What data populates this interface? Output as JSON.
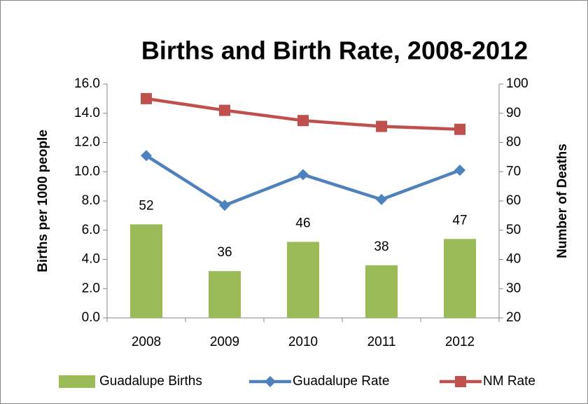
{
  "chart_data": {
    "type": "bar_line",
    "title": "Births and Birth Rate, 2008-2012",
    "ylabel": "Births per 1000 people",
    "y2label": "Number of Deaths",
    "categories": [
      "2008",
      "2009",
      "2010",
      "2011",
      "2012"
    ],
    "series": [
      {
        "name": "Guadalupe Births",
        "type": "bar",
        "axis": "y2",
        "color": "#9bbb59",
        "values": [
          52,
          36,
          46,
          38,
          47
        ]
      },
      {
        "name": "Guadalupe Rate",
        "type": "line",
        "marker": "diamond",
        "color": "#4f81bd",
        "values": [
          11.1,
          7.7,
          9.8,
          8.1,
          10.1
        ]
      },
      {
        "name": "NM Rate",
        "type": "line",
        "marker": "square",
        "color": "#c0504d",
        "values": [
          15.0,
          14.2,
          13.5,
          13.1,
          12.9
        ]
      }
    ],
    "ylim": [
      0,
      16
    ],
    "yticks": [
      {
        "value": 0,
        "label": "0.0"
      },
      {
        "value": 2,
        "label": "2.0"
      },
      {
        "value": 4,
        "label": "4.0"
      },
      {
        "value": 6,
        "label": "6.0"
      },
      {
        "value": 8,
        "label": "8.0"
      },
      {
        "value": 10,
        "label": "10.0"
      },
      {
        "value": 12,
        "label": "12.0"
      },
      {
        "value": 14,
        "label": "14.0"
      },
      {
        "value": 16,
        "label": "16.0"
      }
    ],
    "y2lim": [
      20,
      100
    ],
    "y2ticks": [
      20,
      30,
      40,
      50,
      60,
      70,
      80,
      90,
      100
    ],
    "grid": false,
    "legend": "bottom"
  }
}
